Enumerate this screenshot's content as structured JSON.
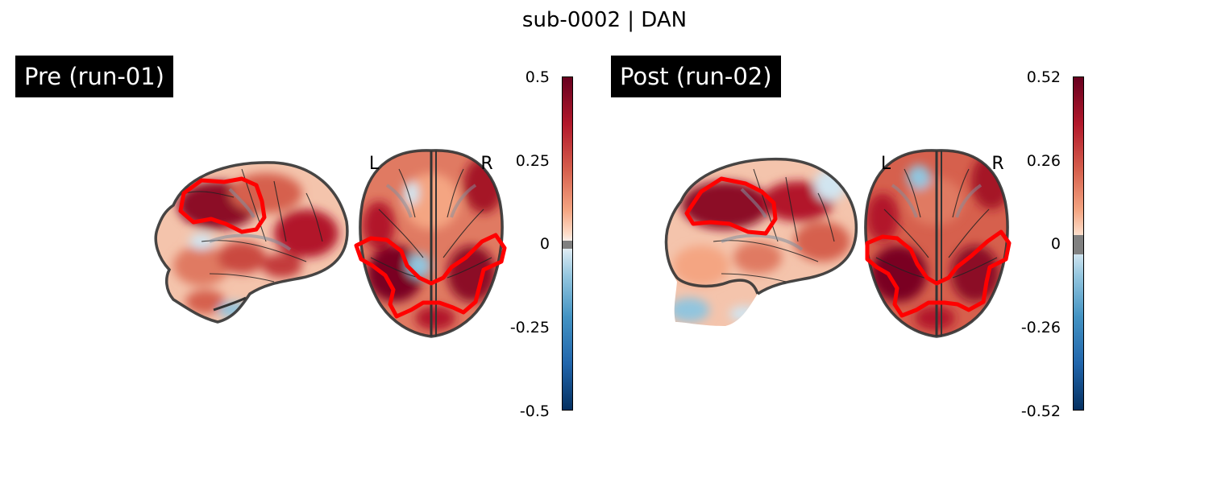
{
  "figure": {
    "title": "sub-0002 | DAN"
  },
  "panels": [
    {
      "label": "Pre (run-01)",
      "orientation_left": "L",
      "orientation_right": "R",
      "colorbar": {
        "ticks": [
          "0.5",
          "0.25",
          "0",
          "-0.25",
          "-0.5"
        ],
        "range": [
          -0.5,
          0.5
        ],
        "colormap": "RdBu_r"
      }
    },
    {
      "label": "Post (run-02)",
      "orientation_left": "L",
      "orientation_right": "R",
      "colorbar": {
        "ticks": [
          "0.52",
          "0.26",
          "0",
          "-0.26",
          "-0.52"
        ],
        "range": [
          -0.52,
          0.52
        ],
        "colormap": "RdBu_r"
      }
    }
  ],
  "colors": {
    "roi_outline": "#ff0000",
    "brain_outline": "#333333",
    "positive_peak": "#67001f",
    "negative_peak": "#053061"
  }
}
